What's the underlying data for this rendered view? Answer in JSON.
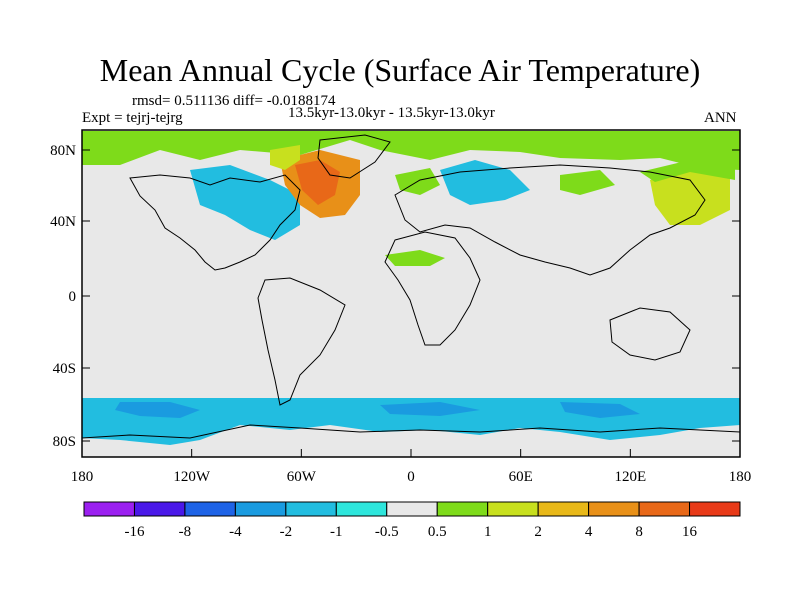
{
  "title": "Mean Annual Cycle (Surface Air Temperature)",
  "stats_line": "rmsd= 0.511136 diff= -0.0188174",
  "experiment_line": "Expt = tejrj-tejrg",
  "subtitle": "13.5kyr-13.0kyr - 13.5kyr-13.0kyr",
  "season": "ANN",
  "lat_labels": [
    "80N",
    "40N",
    "0",
    "40S",
    "80S"
  ],
  "lon_labels": [
    "180",
    "120W",
    "60W",
    "0",
    "60E",
    "120E",
    "180"
  ],
  "colorbar": {
    "labels": [
      "-16",
      "-8",
      "-4",
      "-2",
      "-1",
      "-0.5",
      "0.5",
      "1",
      "2",
      "4",
      "8",
      "16"
    ],
    "colors": [
      "#9b20f0",
      "#4a18e8",
      "#1e63e6",
      "#1a9be0",
      "#22bde0",
      "#2ee6dc",
      "#e8e8e8",
      "#7edb1a",
      "#c8e01e",
      "#e8b818",
      "#e89018",
      "#e86818",
      "#e83a18"
    ]
  },
  "map": {
    "background": "#e8e8e8",
    "regions": [
      {
        "name": "arctic-band",
        "color": "#7edb1a"
      },
      {
        "name": "north-atlantic-warm",
        "color": "#e89018"
      },
      {
        "name": "north-atlantic-core",
        "color": "#e86818"
      },
      {
        "name": "north-america-cool",
        "color": "#22bde0"
      },
      {
        "name": "siberia-cool",
        "color": "#22bde0"
      },
      {
        "name": "pacific-warm",
        "color": "#c8e01e"
      },
      {
        "name": "southern-ocean-cool",
        "color": "#22bde0"
      },
      {
        "name": "southern-ocean-core",
        "color": "#1a9be0"
      }
    ]
  }
}
